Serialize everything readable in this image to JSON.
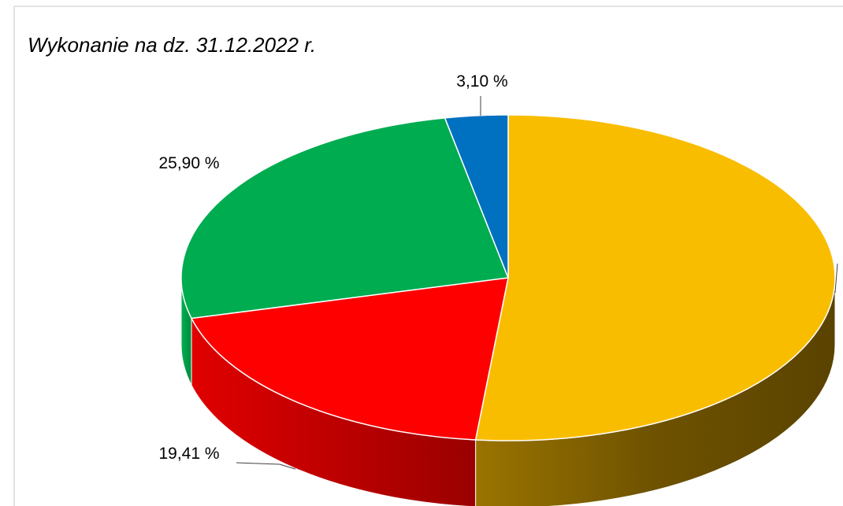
{
  "chart_data": {
    "type": "pie3d",
    "title": "Wykonanie na dz. 31.12.2022 r.",
    "series": [
      {
        "values": [
          51.59,
          19.41,
          25.9,
          3.1
        ],
        "value_labels": [
          null,
          "19,41 %",
          "25,90 %",
          "3,10 %"
        ],
        "colors": [
          "#f9bd00",
          "#ff0000",
          "#00ac50",
          "#0070c0"
        ]
      }
    ]
  }
}
